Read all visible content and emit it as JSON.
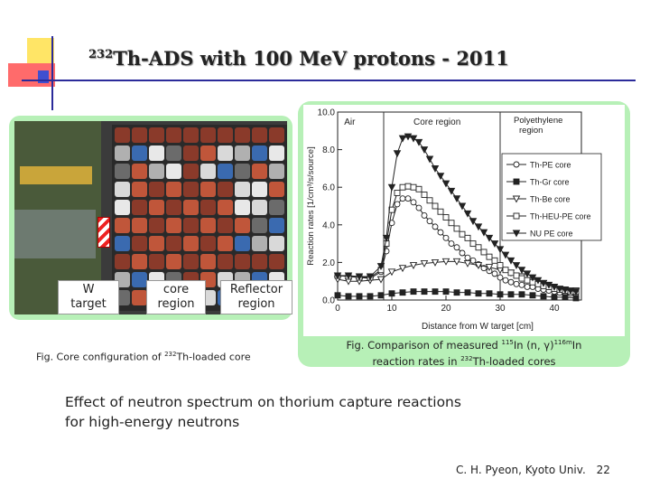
{
  "slide": {
    "title_sup": "232",
    "title": "Th-ADS with 100 MeV protons - 2011",
    "body_line1": "Effect of neutron spectrum on thorium capture reactions",
    "body_line2": "for high-energy neutrons",
    "footer_author": "C. H. Pyeon, Kyoto Univ.",
    "footer_page": "22"
  },
  "photo": {
    "label_w_target_1": "W",
    "label_w_target_2": "target",
    "label_core_1": "core",
    "label_core_2": "region",
    "label_reflector_1": "Reflector",
    "label_reflector_2": "region",
    "caption_pre": "Fig. Core configuration of ",
    "caption_sup": "232",
    "caption_post": "Th-loaded core"
  },
  "chart_caption": {
    "line1_pre": "Fig. Comparison of measured ",
    "line1_sup1": "115",
    "line1_mid": "In (n, γ)",
    "line1_sup2": "116m",
    "line1_post": "In",
    "line2_pre": "reaction rates in ",
    "line2_sup": "232",
    "line2_post": "Th-loaded cores"
  },
  "chart_data": {
    "type": "line",
    "xlabel": "Distance from W target [cm]",
    "ylabel": "Reaction rates [1/cm³/s/source]",
    "xlim": [
      0,
      45
    ],
    "ylim": [
      0,
      10
    ],
    "xticks": [
      "0",
      "10",
      "20",
      "30",
      "40"
    ],
    "yticks": [
      "0.0",
      "2.0",
      "4.0",
      "6.0",
      "8.0",
      "10.0"
    ],
    "region_labels": [
      "Air",
      "Core region",
      "Polyethylene",
      "region"
    ],
    "region_boundaries": [
      8.5,
      30
    ],
    "series": [
      {
        "name": "Th-PE core",
        "marker": "circle-open",
        "x": [
          0,
          2,
          4,
          6,
          8,
          9,
          10,
          11,
          12,
          13,
          14,
          15,
          16,
          17,
          18,
          19,
          20,
          21,
          22,
          23,
          24,
          25,
          26,
          27,
          28,
          29,
          30,
          31,
          32,
          33,
          34,
          35,
          36,
          37,
          38,
          39,
          40,
          41,
          42,
          43,
          44
        ],
        "y": [
          1.3,
          1.25,
          1.2,
          1.15,
          1.5,
          2.6,
          4.1,
          5.1,
          5.4,
          5.4,
          5.2,
          4.9,
          4.5,
          4.2,
          3.9,
          3.6,
          3.3,
          3.0,
          2.8,
          2.5,
          2.25,
          2.1,
          1.9,
          1.7,
          1.55,
          1.4,
          1.2,
          1.05,
          0.95,
          0.85,
          0.8,
          0.7,
          0.7,
          0.6,
          0.55,
          0.5,
          0.45,
          0.4,
          0.4,
          0.35,
          0.35
        ]
      },
      {
        "name": "Th-Gr core",
        "marker": "square-filled",
        "x": [
          0,
          2,
          4,
          6,
          8,
          10,
          12,
          14,
          16,
          18,
          20,
          22,
          24,
          26,
          28,
          30,
          32,
          34,
          36,
          38,
          40,
          42,
          44
        ],
        "y": [
          0.25,
          0.2,
          0.2,
          0.2,
          0.25,
          0.35,
          0.4,
          0.45,
          0.45,
          0.45,
          0.45,
          0.4,
          0.4,
          0.35,
          0.35,
          0.3,
          0.3,
          0.3,
          0.25,
          0.2,
          0.15,
          0.15,
          0.1
        ]
      },
      {
        "name": "Th-Be core",
        "marker": "triangle-down-open",
        "x": [
          0,
          2,
          4,
          6,
          8,
          10,
          12,
          14,
          16,
          18,
          20,
          22,
          24,
          26,
          28,
          30,
          32,
          34,
          36,
          38,
          40,
          42,
          44
        ],
        "y": [
          1.1,
          1.0,
          1.0,
          1.05,
          1.1,
          1.5,
          1.7,
          1.85,
          1.95,
          2.0,
          2.05,
          2.05,
          1.95,
          1.85,
          1.75,
          1.6,
          1.45,
          1.25,
          1.05,
          0.9,
          0.7,
          0.55,
          0.5
        ]
      },
      {
        "name": "Th-HEU-PE core",
        "marker": "square-open",
        "x": [
          0,
          2,
          4,
          6,
          8,
          9,
          10,
          11,
          12,
          13,
          14,
          15,
          16,
          17,
          18,
          19,
          20,
          21,
          22,
          23,
          24,
          25,
          26,
          27,
          28,
          29,
          30,
          31,
          32,
          33,
          34,
          35,
          36,
          37,
          38,
          39,
          40,
          41,
          42,
          43,
          44
        ],
        "y": [
          1.3,
          1.25,
          1.2,
          1.2,
          1.6,
          3.0,
          4.8,
          5.7,
          6.0,
          6.05,
          6.0,
          5.9,
          5.6,
          5.3,
          5.0,
          4.7,
          4.4,
          4.1,
          3.8,
          3.5,
          3.3,
          3.0,
          2.8,
          2.55,
          2.3,
          2.1,
          1.85,
          1.6,
          1.45,
          1.3,
          1.15,
          1.05,
          0.95,
          0.85,
          0.75,
          0.7,
          0.6,
          0.55,
          0.5,
          0.45,
          0.45
        ]
      },
      {
        "name": "NU PE core",
        "marker": "triangle-down-filled",
        "x": [
          0,
          2,
          4,
          6,
          8,
          9,
          10,
          11,
          12,
          13,
          14,
          15,
          16,
          17,
          18,
          19,
          20,
          21,
          22,
          23,
          24,
          25,
          26,
          27,
          28,
          29,
          30,
          31,
          32,
          33,
          34,
          35,
          36,
          37,
          38,
          39,
          40,
          41,
          42,
          43,
          44
        ],
        "y": [
          1.3,
          1.3,
          1.25,
          1.25,
          1.8,
          3.3,
          6.0,
          7.8,
          8.6,
          8.7,
          8.6,
          8.4,
          8.0,
          7.5,
          7.0,
          6.6,
          6.2,
          5.8,
          5.4,
          5.0,
          4.6,
          4.2,
          3.9,
          3.6,
          3.3,
          3.0,
          2.7,
          2.4,
          2.1,
          1.85,
          1.6,
          1.4,
          1.2,
          1.05,
          0.9,
          0.8,
          0.7,
          0.6,
          0.55,
          0.5,
          0.45
        ]
      }
    ]
  },
  "colors": {
    "panel_green": "#b7f0b7",
    "title_text": "#222222",
    "decor_yellow": "#ffe566",
    "decor_red": "#ff6b6b",
    "decor_blue": "#3f4fd0"
  }
}
